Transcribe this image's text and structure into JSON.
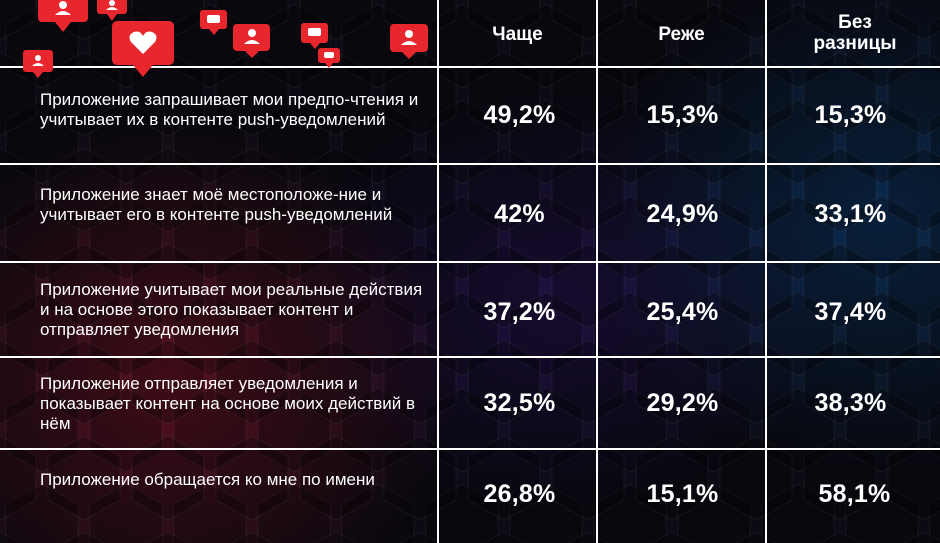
{
  "header": {
    "columns": [
      "Чаще",
      "Реже",
      "Без разницы"
    ]
  },
  "rows": [
    {
      "label": "Приложение запрашивает мои предпо-чтения и учитывает их в контенте push-уведомлений",
      "values": [
        "49,2%",
        "15,3%",
        "15,3%"
      ]
    },
    {
      "label": "Приложение знает моё местоположе-ние и учитывает его в контенте push-уведомлений",
      "values": [
        "42%",
        "24,9%",
        "33,1%"
      ]
    },
    {
      "label": "Приложение учитывает мои реальные действия и на основе этого показывает контент и отправляет уведомления",
      "values": [
        "37,2%",
        "25,4%",
        "37,4%"
      ]
    },
    {
      "label": "Приложение отправляет уведомления и показывает контент на основе моих действий в нём",
      "values": [
        "32,5%",
        "29,2%",
        "38,3%"
      ]
    },
    {
      "label": "Приложение обращается ко мне по имени",
      "values": [
        "26,8%",
        "15,1%",
        "58,1%"
      ]
    }
  ],
  "chart_data": {
    "type": "table",
    "columns": [
      "Чаще",
      "Реже",
      "Без разницы"
    ],
    "rows": [
      {
        "label": "Приложение запрашивает мои предпо-чтения и учитывает их в контенте push-уведомлений",
        "values": [
          49.2,
          15.3,
          15.3
        ]
      },
      {
        "label": "Приложение знает моё местоположе-ние и учитывает его в контенте push-уведомлений",
        "values": [
          42,
          24.9,
          33.1
        ]
      },
      {
        "label": "Приложение учитывает мои реальные действия и на основе этого показывает контент и отправляет уведомления",
        "values": [
          37.2,
          25.4,
          37.4
        ]
      },
      {
        "label": "Приложение отправляет уведомления и показывает контент на основе моих действий в нём",
        "values": [
          32.5,
          29.2,
          38.3
        ]
      },
      {
        "label": "Приложение обращается ко мне по имени",
        "values": [
          26.8,
          15.1,
          58.1
        ]
      }
    ],
    "unit": "%"
  },
  "decor": {
    "accent_color": "#e8262d",
    "icons": [
      "user-icon",
      "heart-icon",
      "comment-icon"
    ]
  }
}
